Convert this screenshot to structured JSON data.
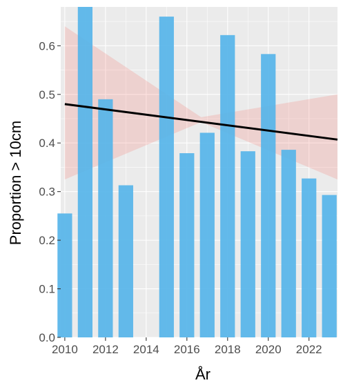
{
  "chart_data": {
    "type": "bar",
    "title": "",
    "xlabel": "År",
    "ylabel": "Proportion > 10cm",
    "x": [
      2010,
      2011,
      2012,
      2013,
      2015,
      2016,
      2017,
      2018,
      2019,
      2020,
      2021,
      2022,
      2023
    ],
    "values": [
      0.255,
      0.68,
      0.49,
      0.313,
      0.66,
      0.379,
      0.421,
      0.622,
      0.383,
      0.583,
      0.386,
      0.327,
      0.293
    ],
    "xlim": [
      2009.8,
      2023.4
    ],
    "ylim": [
      0,
      0.68
    ],
    "x_ticks": [
      2010,
      2012,
      2014,
      2016,
      2018,
      2020,
      2022
    ],
    "y_ticks": [
      0.0,
      0.1,
      0.2,
      0.3,
      0.4,
      0.5,
      0.6
    ],
    "y_tick_labels": [
      "0.0",
      "0.1",
      "0.2",
      "0.3",
      "0.4",
      "0.5",
      "0.6"
    ],
    "trend": {
      "type": "linear",
      "x": [
        2010,
        2023.4
      ],
      "y": [
        0.48,
        0.407
      ]
    },
    "confidence_band": {
      "x": [
        2010,
        2016.7,
        2023.4
      ],
      "lower": [
        0.325,
        0.443,
        0.325
      ],
      "upper": [
        0.64,
        0.453,
        0.5
      ]
    },
    "grid": true,
    "legend": "none",
    "colors": {
      "panel_background": "#ebebeb",
      "grid": "#ffffff",
      "bar": "#56b4e9",
      "trend": "#000000",
      "band": "#f8766d"
    }
  }
}
